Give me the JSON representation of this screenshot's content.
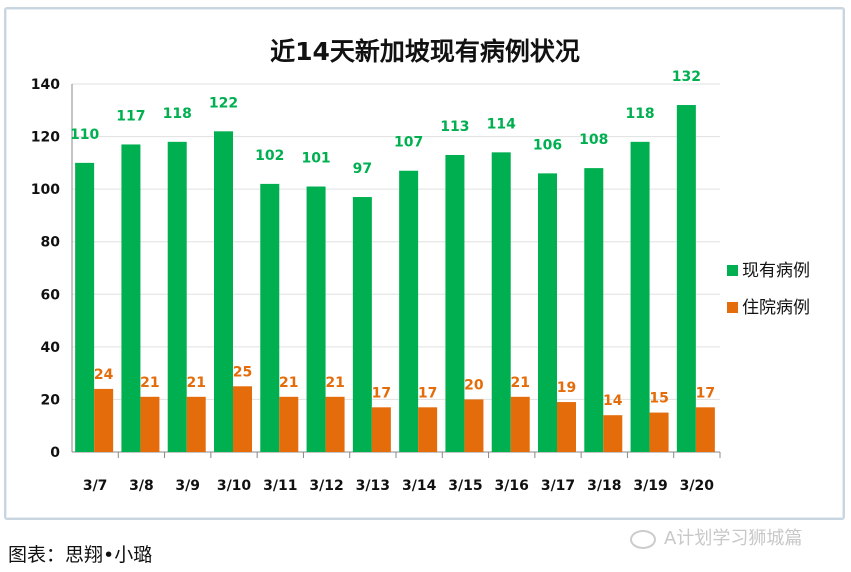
{
  "chart_data": {
    "type": "bar",
    "title": "近14天新加坡现有病例状况",
    "categories": [
      "3/7",
      "3/8",
      "3/9",
      "3/10",
      "3/11",
      "3/12",
      "3/13",
      "3/14",
      "3/15",
      "3/16",
      "3/17",
      "3/18",
      "3/19",
      "3/20"
    ],
    "series": [
      {
        "name": "现有病例",
        "color": "#00b050",
        "values": [
          110,
          117,
          118,
          122,
          102,
          101,
          97,
          107,
          113,
          114,
          106,
          108,
          118,
          132
        ]
      },
      {
        "name": "住院病例",
        "color": "#e46c0a",
        "values": [
          24,
          21,
          21,
          25,
          21,
          21,
          17,
          17,
          20,
          21,
          19,
          14,
          15,
          17
        ]
      }
    ],
    "ylim": [
      0,
      140
    ],
    "yticks": [
      0,
      20,
      40,
      60,
      80,
      100,
      120,
      140
    ],
    "grid": true,
    "legend_position": "right"
  },
  "caption": "图表：思翔•小璐",
  "watermark": "A计划学习狮城篇"
}
